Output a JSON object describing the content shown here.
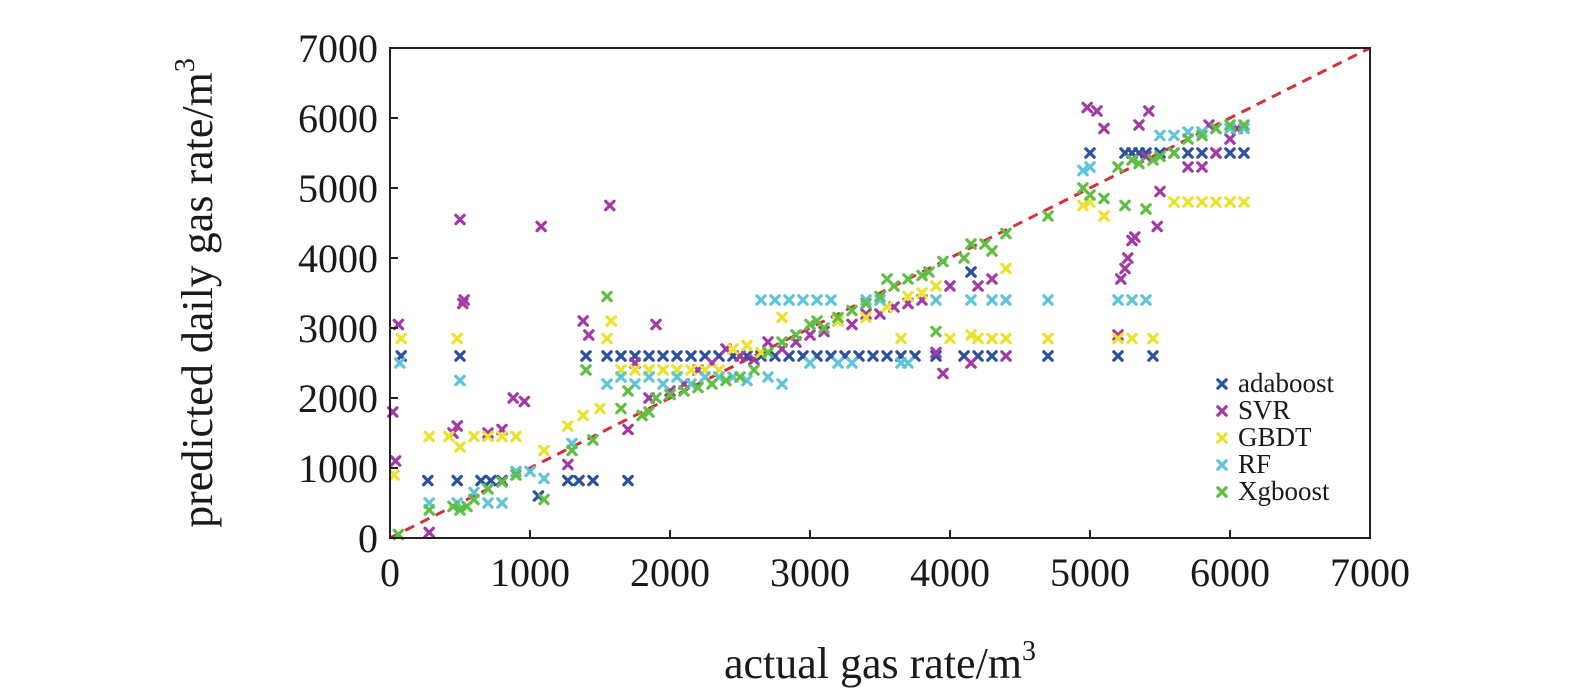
{
  "chart_data": {
    "type": "scatter",
    "xlabel": "actual gas rate/m",
    "xlabel_sup": "3",
    "ylabel": "predicted daily gas rate/m",
    "ylabel_sup": "3",
    "xlim": [
      0,
      7000
    ],
    "ylim": [
      0,
      7000
    ],
    "xticks": [
      "0",
      "1000",
      "2000",
      "3000",
      "4000",
      "5000",
      "6000",
      "7000"
    ],
    "yticks": [
      "0",
      "1000",
      "2000",
      "3000",
      "4000",
      "5000",
      "6000",
      "7000"
    ],
    "grid": false,
    "legend_position": "bottom-right",
    "marker": "x",
    "reference_line": {
      "style": "dashed",
      "color": "#d62f3a",
      "from": [
        0,
        0
      ],
      "to": [
        7000,
        7000
      ]
    },
    "series": [
      {
        "name": "adaboost",
        "color": "#2c4f9e",
        "points": [
          [
            80,
            2600
          ],
          [
            270,
            820
          ],
          [
            480,
            820
          ],
          [
            500,
            2600
          ],
          [
            650,
            820
          ],
          [
            720,
            820
          ],
          [
            800,
            820
          ],
          [
            1060,
            600
          ],
          [
            1270,
            820
          ],
          [
            1350,
            820
          ],
          [
            1450,
            820
          ],
          [
            1400,
            2600
          ],
          [
            1550,
            2600
          ],
          [
            1650,
            2600
          ],
          [
            1700,
            820
          ],
          [
            1750,
            2600
          ],
          [
            1850,
            2600
          ],
          [
            1950,
            2600
          ],
          [
            2050,
            2600
          ],
          [
            2150,
            2600
          ],
          [
            2250,
            2600
          ],
          [
            2350,
            2600
          ],
          [
            2450,
            2600
          ],
          [
            2550,
            2600
          ],
          [
            2650,
            2600
          ],
          [
            2750,
            2600
          ],
          [
            2850,
            2600
          ],
          [
            2950,
            2600
          ],
          [
            3050,
            2600
          ],
          [
            3150,
            2600
          ],
          [
            3250,
            2600
          ],
          [
            3350,
            2600
          ],
          [
            3450,
            2600
          ],
          [
            3550,
            2600
          ],
          [
            3650,
            2600
          ],
          [
            3750,
            2600
          ],
          [
            3900,
            2600
          ],
          [
            4100,
            2600
          ],
          [
            4200,
            2600
          ],
          [
            4300,
            2600
          ],
          [
            4700,
            2600
          ],
          [
            4150,
            3800
          ],
          [
            5000,
            5500
          ],
          [
            5200,
            2600
          ],
          [
            5250,
            5500
          ],
          [
            5300,
            5500
          ],
          [
            5350,
            5500
          ],
          [
            5400,
            5500
          ],
          [
            5450,
            2600
          ],
          [
            5500,
            5500
          ],
          [
            5600,
            5500
          ],
          [
            5700,
            5500
          ],
          [
            5800,
            5500
          ],
          [
            5900,
            5500
          ],
          [
            6000,
            5500
          ],
          [
            6100,
            5500
          ]
        ]
      },
      {
        "name": "SVR",
        "color": "#a23aa6",
        "points": [
          [
            20,
            1800
          ],
          [
            40,
            1100
          ],
          [
            60,
            3050
          ],
          [
            280,
            80
          ],
          [
            450,
            1500
          ],
          [
            480,
            1600
          ],
          [
            500,
            4550
          ],
          [
            520,
            3350
          ],
          [
            530,
            3400
          ],
          [
            700,
            1500
          ],
          [
            800,
            1550
          ],
          [
            880,
            2000
          ],
          [
            960,
            1950
          ],
          [
            1080,
            4450
          ],
          [
            1270,
            1050
          ],
          [
            1380,
            3100
          ],
          [
            1420,
            2900
          ],
          [
            1570,
            4750
          ],
          [
            1700,
            1550
          ],
          [
            1750,
            2500
          ],
          [
            1850,
            2000
          ],
          [
            1900,
            3050
          ],
          [
            2000,
            2100
          ],
          [
            2100,
            2200
          ],
          [
            2200,
            2400
          ],
          [
            2300,
            2500
          ],
          [
            2400,
            2700
          ],
          [
            2500,
            2600
          ],
          [
            2600,
            2550
          ],
          [
            2700,
            2800
          ],
          [
            2800,
            2700
          ],
          [
            2900,
            2800
          ],
          [
            3000,
            2900
          ],
          [
            3100,
            2950
          ],
          [
            3200,
            3100
          ],
          [
            3300,
            3050
          ],
          [
            3400,
            3200
          ],
          [
            3500,
            3200
          ],
          [
            3600,
            3300
          ],
          [
            3700,
            3350
          ],
          [
            3800,
            3400
          ],
          [
            3900,
            2650
          ],
          [
            3950,
            2350
          ],
          [
            4000,
            3600
          ],
          [
            4150,
            2500
          ],
          [
            4200,
            3600
          ],
          [
            4300,
            3700
          ],
          [
            4400,
            2600
          ],
          [
            4980,
            6150
          ],
          [
            5050,
            6100
          ],
          [
            5100,
            5850
          ],
          [
            5200,
            2900
          ],
          [
            5220,
            3700
          ],
          [
            5250,
            3850
          ],
          [
            5270,
            4000
          ],
          [
            5300,
            4250
          ],
          [
            5320,
            4300
          ],
          [
            5350,
            5900
          ],
          [
            5400,
            5450
          ],
          [
            5420,
            6100
          ],
          [
            5480,
            4450
          ],
          [
            5500,
            4950
          ],
          [
            5700,
            5300
          ],
          [
            5800,
            5300
          ],
          [
            5850,
            5900
          ],
          [
            5900,
            5500
          ],
          [
            6000,
            5700
          ],
          [
            6050,
            5850
          ]
        ]
      },
      {
        "name": "GBDT",
        "color": "#eae22c",
        "points": [
          [
            30,
            900
          ],
          [
            80,
            2850
          ],
          [
            280,
            1450
          ],
          [
            420,
            1450
          ],
          [
            480,
            2850
          ],
          [
            500,
            1300
          ],
          [
            600,
            1450
          ],
          [
            700,
            1450
          ],
          [
            800,
            1450
          ],
          [
            900,
            1450
          ],
          [
            1100,
            1250
          ],
          [
            1270,
            1600
          ],
          [
            1380,
            1750
          ],
          [
            1500,
            1850
          ],
          [
            1550,
            2850
          ],
          [
            1580,
            3100
          ],
          [
            1650,
            2400
          ],
          [
            1750,
            2400
          ],
          [
            1850,
            2400
          ],
          [
            1950,
            2400
          ],
          [
            2050,
            2400
          ],
          [
            2150,
            2400
          ],
          [
            2250,
            2400
          ],
          [
            2350,
            2400
          ],
          [
            2450,
            2700
          ],
          [
            2550,
            2750
          ],
          [
            2650,
            2650
          ],
          [
            2800,
            3150
          ],
          [
            3000,
            3050
          ],
          [
            3200,
            3100
          ],
          [
            3400,
            3150
          ],
          [
            3550,
            3300
          ],
          [
            3650,
            2850
          ],
          [
            3700,
            3450
          ],
          [
            3800,
            3500
          ],
          [
            3900,
            3600
          ],
          [
            4000,
            2850
          ],
          [
            4150,
            2900
          ],
          [
            4200,
            2850
          ],
          [
            4300,
            2850
          ],
          [
            4400,
            2850
          ],
          [
            4400,
            3850
          ],
          [
            4700,
            2850
          ],
          [
            4950,
            4750
          ],
          [
            5000,
            4800
          ],
          [
            5100,
            4600
          ],
          [
            5200,
            2850
          ],
          [
            5300,
            2850
          ],
          [
            5400,
            4700
          ],
          [
            5450,
            2850
          ],
          [
            5600,
            4800
          ],
          [
            5700,
            4800
          ],
          [
            5800,
            4800
          ],
          [
            5900,
            4800
          ],
          [
            6000,
            4800
          ],
          [
            6100,
            4800
          ]
        ]
      },
      {
        "name": "RF",
        "color": "#5fc3d9",
        "points": [
          [
            70,
            2500
          ],
          [
            280,
            500
          ],
          [
            480,
            500
          ],
          [
            500,
            2250
          ],
          [
            600,
            650
          ],
          [
            700,
            500
          ],
          [
            800,
            500
          ],
          [
            900,
            950
          ],
          [
            1000,
            950
          ],
          [
            1100,
            850
          ],
          [
            1300,
            1350
          ],
          [
            1550,
            2200
          ],
          [
            1650,
            2300
          ],
          [
            1750,
            2200
          ],
          [
            1850,
            2300
          ],
          [
            1950,
            2200
          ],
          [
            2050,
            2300
          ],
          [
            2150,
            2200
          ],
          [
            2250,
            2300
          ],
          [
            2350,
            2300
          ],
          [
            2450,
            2300
          ],
          [
            2550,
            2250
          ],
          [
            2650,
            3400
          ],
          [
            2700,
            2300
          ],
          [
            2750,
            3400
          ],
          [
            2800,
            2200
          ],
          [
            2850,
            3400
          ],
          [
            2950,
            3400
          ],
          [
            3000,
            2500
          ],
          [
            3050,
            3400
          ],
          [
            3150,
            3400
          ],
          [
            3200,
            2500
          ],
          [
            3300,
            2500
          ],
          [
            3400,
            3400
          ],
          [
            3500,
            3400
          ],
          [
            3650,
            2500
          ],
          [
            3700,
            2500
          ],
          [
            3900,
            3400
          ],
          [
            4150,
            3400
          ],
          [
            4300,
            3400
          ],
          [
            4400,
            3400
          ],
          [
            4700,
            3400
          ],
          [
            4950,
            5250
          ],
          [
            5000,
            5300
          ],
          [
            5200,
            3400
          ],
          [
            5300,
            3400
          ],
          [
            5400,
            3400
          ],
          [
            5500,
            5750
          ],
          [
            5600,
            5750
          ],
          [
            5700,
            5800
          ],
          [
            5800,
            5800
          ],
          [
            5900,
            5850
          ],
          [
            6000,
            5850
          ],
          [
            6100,
            5850
          ]
        ]
      },
      {
        "name": "Xgboost",
        "color": "#5fbf45",
        "points": [
          [
            60,
            50
          ],
          [
            280,
            400
          ],
          [
            450,
            450
          ],
          [
            500,
            400
          ],
          [
            550,
            450
          ],
          [
            600,
            550
          ],
          [
            700,
            700
          ],
          [
            800,
            800
          ],
          [
            900,
            900
          ],
          [
            1100,
            550
          ],
          [
            1300,
            1250
          ],
          [
            1400,
            2400
          ],
          [
            1450,
            1400
          ],
          [
            1550,
            3450
          ],
          [
            1650,
            1850
          ],
          [
            1700,
            2100
          ],
          [
            1800,
            1750
          ],
          [
            1850,
            1800
          ],
          [
            1900,
            2000
          ],
          [
            2000,
            2050
          ],
          [
            2100,
            2100
          ],
          [
            2200,
            2150
          ],
          [
            2300,
            2200
          ],
          [
            2400,
            2250
          ],
          [
            2500,
            2300
          ],
          [
            2600,
            2400
          ],
          [
            2700,
            2650
          ],
          [
            2800,
            2800
          ],
          [
            2900,
            2900
          ],
          [
            3000,
            3050
          ],
          [
            3050,
            3100
          ],
          [
            3100,
            3000
          ],
          [
            3200,
            3150
          ],
          [
            3300,
            3250
          ],
          [
            3400,
            3350
          ],
          [
            3500,
            3450
          ],
          [
            3550,
            3700
          ],
          [
            3600,
            3600
          ],
          [
            3700,
            3700
          ],
          [
            3800,
            3750
          ],
          [
            3850,
            3800
          ],
          [
            3900,
            2950
          ],
          [
            3950,
            3950
          ],
          [
            4100,
            4000
          ],
          [
            4150,
            4200
          ],
          [
            4250,
            4200
          ],
          [
            4300,
            4100
          ],
          [
            4400,
            4350
          ],
          [
            4700,
            4600
          ],
          [
            4950,
            5000
          ],
          [
            5000,
            4900
          ],
          [
            5100,
            4850
          ],
          [
            5200,
            5300
          ],
          [
            5250,
            4750
          ],
          [
            5300,
            5400
          ],
          [
            5350,
            5350
          ],
          [
            5400,
            4700
          ],
          [
            5450,
            5400
          ],
          [
            5500,
            5450
          ],
          [
            5600,
            5500
          ],
          [
            5700,
            5700
          ],
          [
            5800,
            5750
          ],
          [
            5900,
            5850
          ],
          [
            6000,
            5900
          ],
          [
            6100,
            5900
          ]
        ]
      }
    ]
  }
}
